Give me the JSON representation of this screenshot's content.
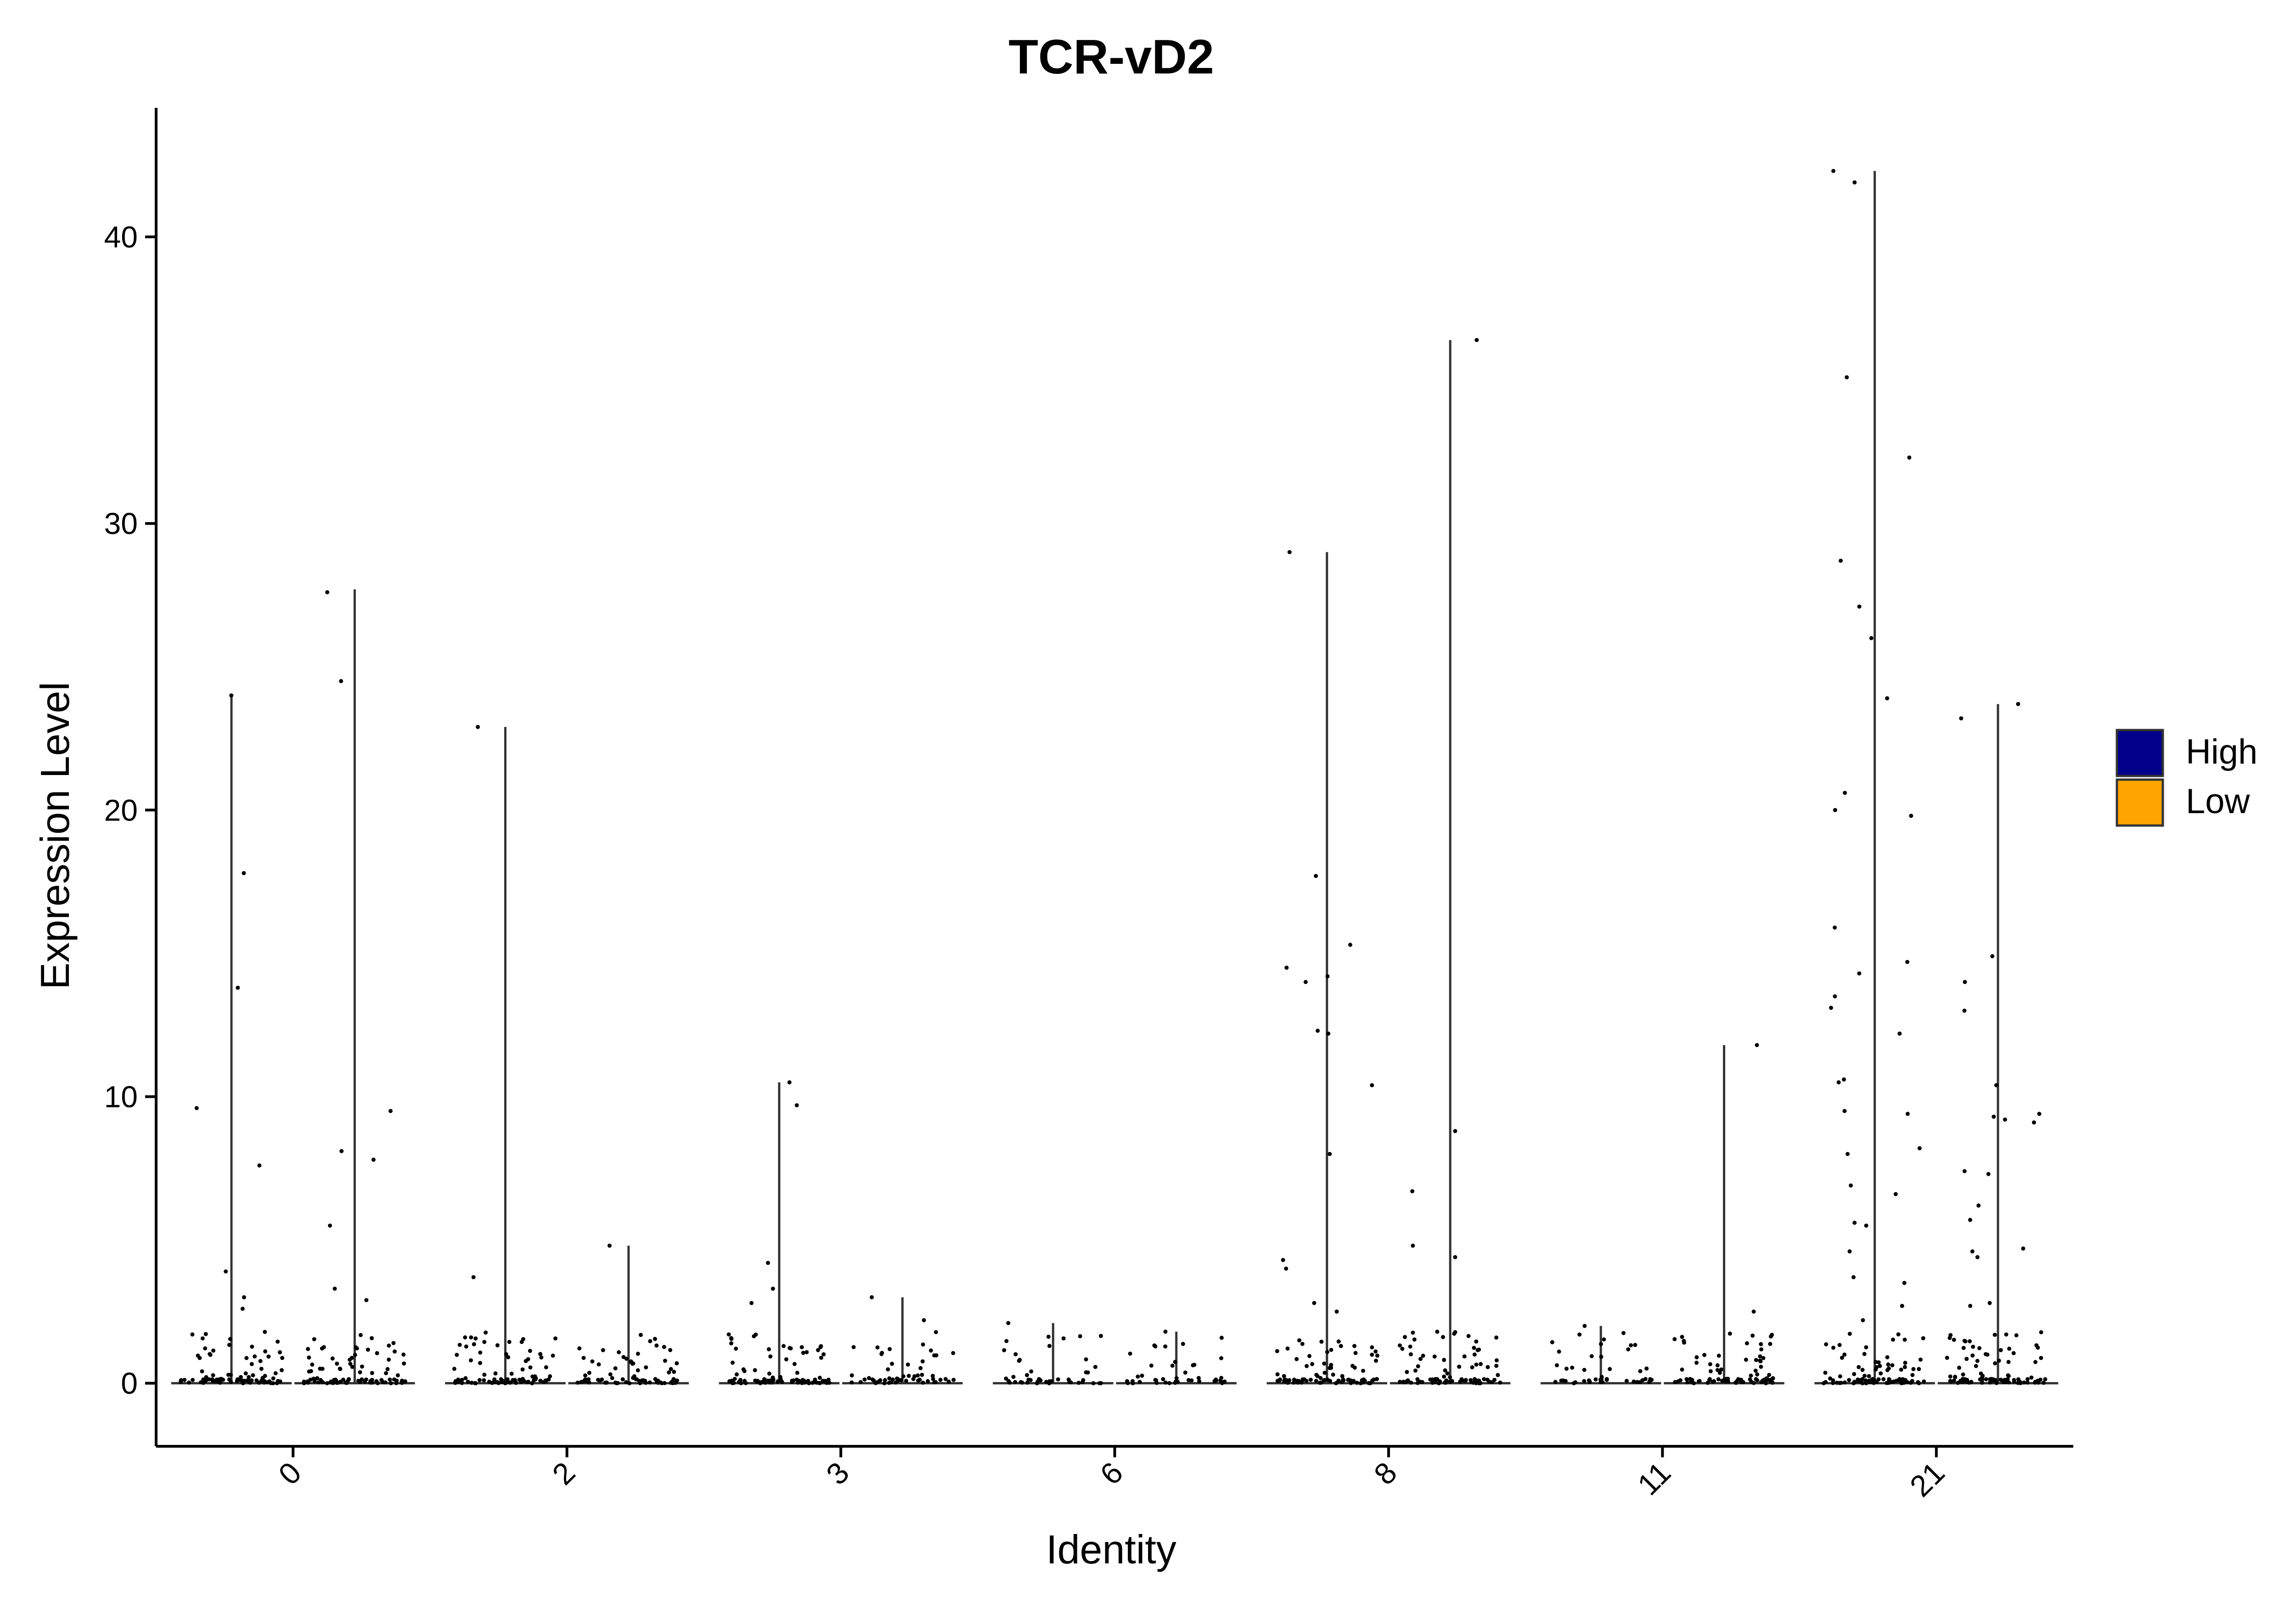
{
  "chart_data": {
    "type": "violin",
    "title": "TCR-vD2",
    "xlabel": "Identity",
    "ylabel": "Expression Level",
    "ylim": [
      -2.2,
      44.5
    ],
    "yticks": [
      0,
      10,
      20,
      30,
      40
    ],
    "categories": [
      "0",
      "2",
      "3",
      "6",
      "8",
      "11",
      "21"
    ],
    "legend": {
      "placement": "right",
      "entries": [
        {
          "name": "High",
          "color": "#00008B"
        },
        {
          "name": "Low",
          "color": "#FFA500"
        }
      ]
    },
    "series": [
      {
        "name": "High",
        "color": "#00008B",
        "max": [
          24.0,
          22.9,
          10.5,
          2.1,
          29.0,
          2.0,
          42.3
        ]
      },
      {
        "name": "Low",
        "color": "#FFA500",
        "max": [
          27.7,
          4.8,
          3.0,
          1.8,
          36.4,
          11.8,
          23.7
        ]
      }
    ],
    "outliers": [
      {
        "category": "0",
        "group": "High",
        "values": [
          24.0,
          17.8,
          13.8,
          9.6,
          7.6,
          3.9,
          3.0,
          2.6
        ]
      },
      {
        "category": "0",
        "group": "Low",
        "values": [
          27.6,
          24.5,
          9.5,
          8.1,
          7.8,
          5.5,
          3.3,
          2.9
        ]
      },
      {
        "category": "2",
        "group": "High",
        "values": [
          22.9,
          3.7
        ]
      },
      {
        "category": "2",
        "group": "Low",
        "values": [
          4.8
        ]
      },
      {
        "category": "3",
        "group": "High",
        "values": [
          10.5,
          9.7,
          4.2,
          3.3,
          2.8
        ]
      },
      {
        "category": "3",
        "group": "Low",
        "values": [
          3.0,
          2.2
        ]
      },
      {
        "category": "6",
        "group": "High",
        "values": [
          2.1
        ]
      },
      {
        "category": "6",
        "group": "Low",
        "values": [
          1.8
        ]
      },
      {
        "category": "8",
        "group": "High",
        "values": [
          29.0,
          17.7,
          15.3,
          14.5,
          14.2,
          14.0,
          12.3,
          12.2,
          10.4,
          8.0,
          4.3,
          4.0,
          2.8,
          2.5
        ]
      },
      {
        "category": "8",
        "group": "Low",
        "values": [
          36.4,
          8.8,
          6.7,
          4.8,
          4.4
        ]
      },
      {
        "category": "11",
        "group": "High",
        "values": [
          2.0,
          1.7
        ]
      },
      {
        "category": "11",
        "group": "Low",
        "values": [
          11.8,
          2.5
        ]
      },
      {
        "category": "21",
        "group": "High",
        "values": [
          42.3,
          41.9,
          35.1,
          32.3,
          28.7,
          27.1,
          26.0,
          23.9,
          20.6,
          20.0,
          19.8,
          15.9,
          14.7,
          14.3,
          13.5,
          13.1,
          12.2,
          10.6,
          10.5,
          9.5,
          9.4,
          8.2,
          8.0,
          6.9,
          6.6,
          5.6,
          5.5,
          4.6,
          3.7,
          3.5,
          2.7,
          2.2,
          1.0
        ]
      },
      {
        "category": "21",
        "group": "Low",
        "values": [
          23.7,
          23.2,
          14.9,
          14.0,
          13.0,
          10.4,
          9.4,
          9.3,
          9.2,
          9.1,
          7.4,
          7.3,
          6.2,
          5.7,
          4.7,
          4.6,
          4.4,
          2.8,
          2.7
        ]
      }
    ],
    "grid": false
  }
}
